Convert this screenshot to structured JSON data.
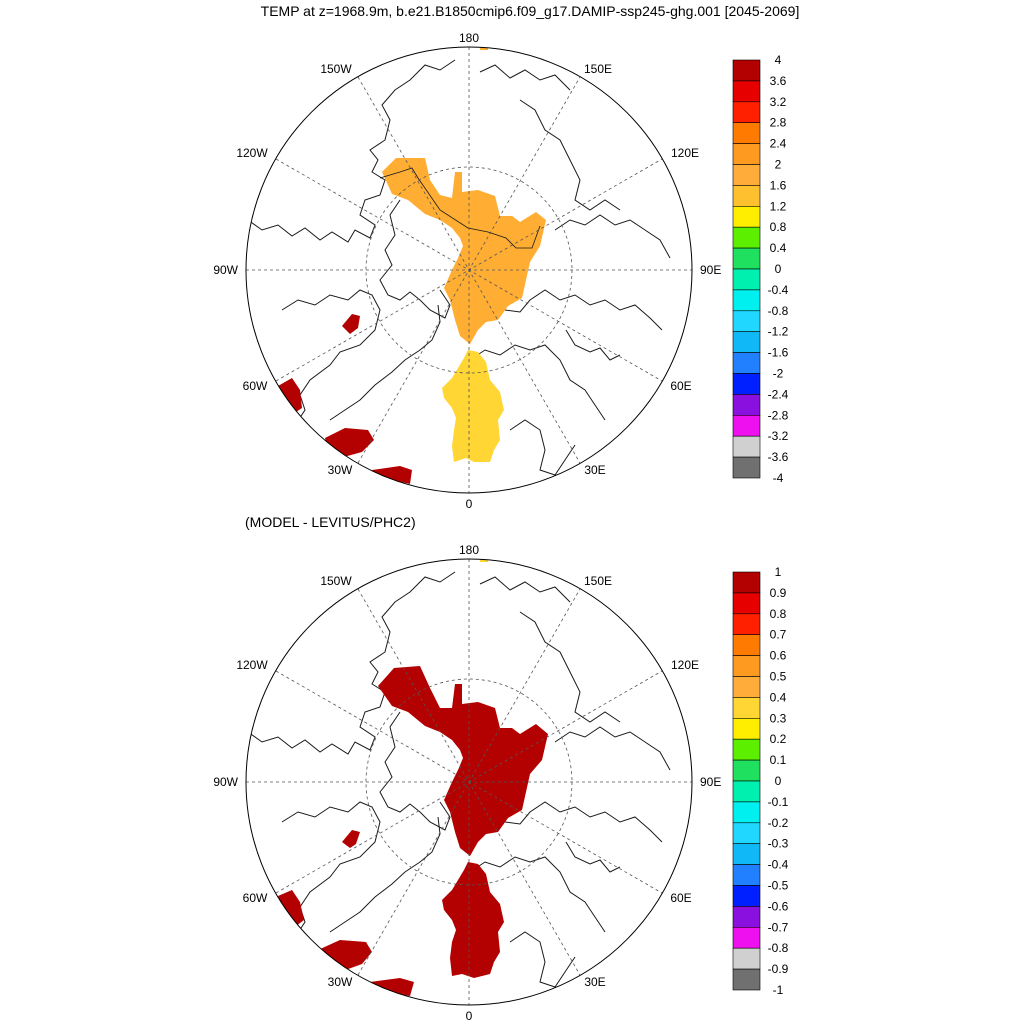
{
  "title": "TEMP at z=1968.9m, b.e21.B1850cmip6.f09_g17.DAMIP-ssp245-ghg.001 [2045-2069]",
  "subtitle": "(MODEL - LEVITUS/PHC2)",
  "longitude_labels": {
    "top": "180",
    "bottom": "0",
    "left": "90W",
    "right": "90E",
    "upper_left_1": "150W",
    "upper_left_2": "120W",
    "upper_right_1": "150E",
    "upper_right_2": "120E",
    "lower_left_1": "60W",
    "lower_left_2": "30W",
    "lower_right_1": "60E",
    "lower_right_2": "30E"
  },
  "colors": {
    "land_line": "#1a1a1a",
    "grid": "#555555",
    "dark_red": "#b30000"
  },
  "maps": [
    {
      "id": "top",
      "legend": {
        "labels": [
          "4",
          "3.6",
          "3.2",
          "2.8",
          "2.4",
          "2",
          "1.6",
          "1.2",
          "0.8",
          "0.4",
          "0",
          "-0.4",
          "-0.8",
          "-1.2",
          "-1.6",
          "-2",
          "-2.4",
          "-2.8",
          "-3.2",
          "-3.6",
          "-4"
        ],
        "colors": [
          "#b30000",
          "#e60000",
          "#ff2000",
          "#ff7a00",
          "#ff9a20",
          "#ffac3a",
          "#ffc030",
          "#ffee00",
          "#5cf000",
          "#20e060",
          "#00f0b0",
          "#00f0f0",
          "#20d8ff",
          "#10b8f8",
          "#2080ff",
          "#0020ff",
          "#8a10e0",
          "#ee10ee",
          "#d0d0d0",
          "#707070"
        ]
      },
      "fill_colors": {
        "arctic": "#ffad33",
        "atlantic": "#ffd633",
        "patches": "#b30000",
        "small_patch": "#ff9a20"
      }
    },
    {
      "id": "bottom",
      "legend": {
        "labels": [
          "1",
          "0.9",
          "0.8",
          "0.7",
          "0.6",
          "0.5",
          "0.4",
          "0.3",
          "0.2",
          "0.1",
          "0",
          "-0.1",
          "-0.2",
          "-0.3",
          "-0.4",
          "-0.5",
          "-0.6",
          "-0.7",
          "-0.8",
          "-0.9",
          "-1"
        ],
        "colors": [
          "#b30000",
          "#e60000",
          "#ff2000",
          "#ff7a00",
          "#ff9a20",
          "#ffac3a",
          "#ffd633",
          "#ffee00",
          "#5cf000",
          "#20e060",
          "#00f0b0",
          "#00f0f0",
          "#20d8ff",
          "#10b8f8",
          "#2080ff",
          "#0020ff",
          "#8a10e0",
          "#ee10ee",
          "#d0d0d0",
          "#707070"
        ]
      },
      "fill_colors": {
        "arctic": "#b30000",
        "atlantic": "#b30000",
        "patches": "#b30000",
        "small_patch": "#ffd633"
      }
    }
  ]
}
